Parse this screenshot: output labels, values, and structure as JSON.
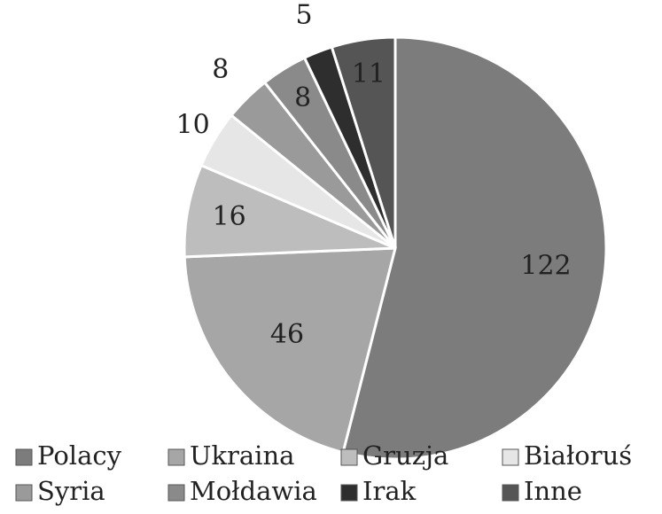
{
  "chart_data": {
    "type": "pie",
    "categories": [
      "Polacy",
      "Ukraina",
      "Gruzja",
      "Białoruś",
      "Syria",
      "Mołdawia",
      "Irak",
      "Inne"
    ],
    "values": [
      122,
      46,
      16,
      10,
      8,
      8,
      5,
      11
    ],
    "colors": [
      "#7c7c7c",
      "#a6a6a6",
      "#bdbdbd",
      "#e6e6e6",
      "#9a9a9a",
      "#8a8a8a",
      "#2e2e2e",
      "#555555"
    ],
    "legend": "bottom"
  }
}
